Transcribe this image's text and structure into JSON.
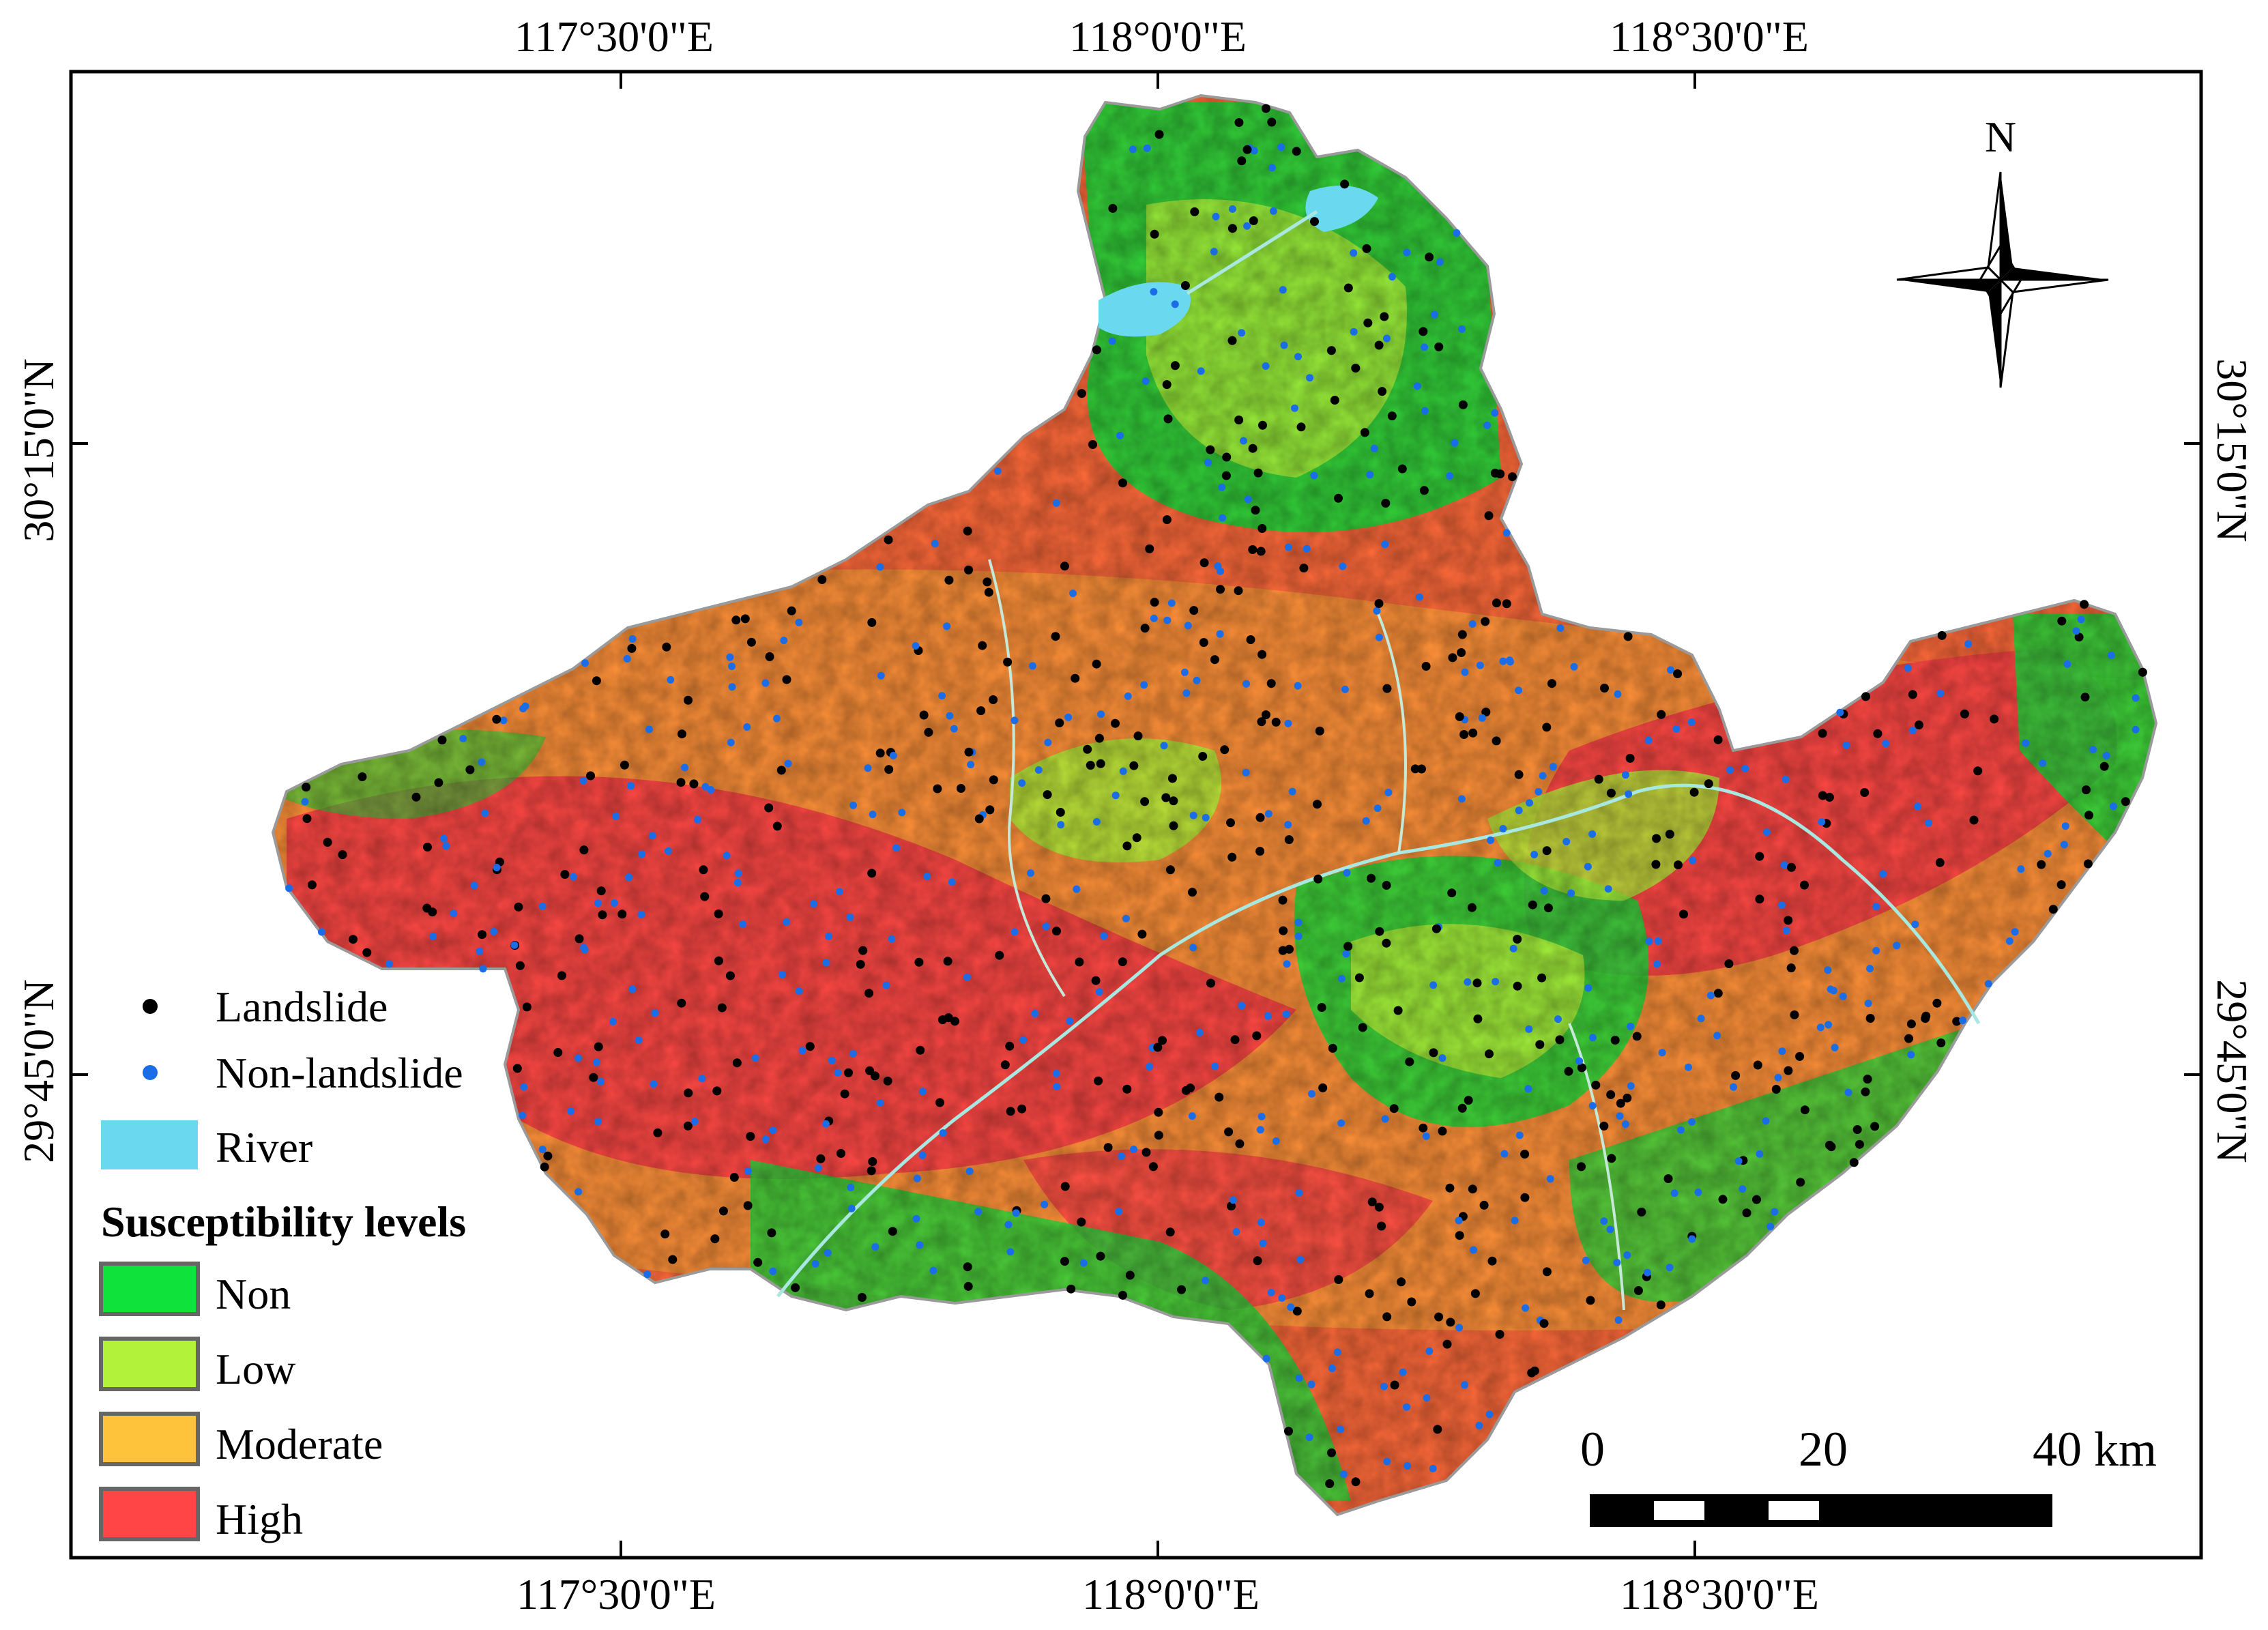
{
  "map": {
    "top_ticks": [
      "117°30'0\"E",
      "118°0'0\"E",
      "118°30'0\"E"
    ],
    "bottom_ticks": [
      "117°30'0\"E",
      "118°0'0\"E",
      "118°30'0\"E"
    ],
    "left_ticks": [
      "30°15'0\"N",
      "29°45'0\"N"
    ],
    "right_ticks": [
      "30°15'0\"N",
      "29°45'0\"N"
    ]
  },
  "north_arrow": {
    "label": "N"
  },
  "scale_bar": {
    "labels": [
      "0",
      "20",
      "40 km"
    ]
  },
  "legend": {
    "points": [
      {
        "label": "Landslide",
        "color": "#000000"
      },
      {
        "label": "Non-landslide",
        "color": "#1a6de6"
      }
    ],
    "river": {
      "label": "River",
      "color": "#6ad8ee"
    },
    "susceptibility_title": "Susceptibility levels",
    "levels": [
      {
        "label": "Non",
        "color": "#0fe23a"
      },
      {
        "label": "Low",
        "color": "#b2f23a"
      },
      {
        "label": "Moderate",
        "color": "#ffc23a"
      },
      {
        "label": "High",
        "color": "#ff4545"
      }
    ]
  }
}
